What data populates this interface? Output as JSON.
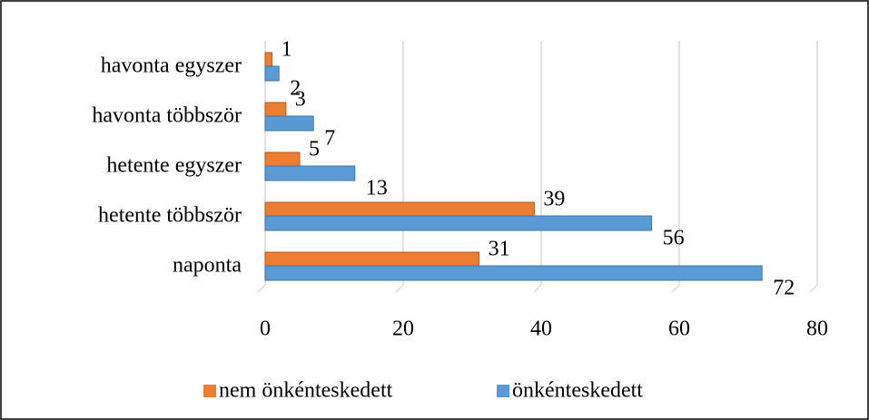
{
  "chart_data": {
    "type": "barh",
    "categories": [
      "naponta",
      "hetente többször",
      "hetente egyszer",
      "havonta többször",
      "havonta egyszer"
    ],
    "series": [
      {
        "name": "nem önkénteskedett",
        "color": "#ed7d31",
        "values": [
          31,
          39,
          5,
          3,
          1
        ]
      },
      {
        "name": "önkénteskedett",
        "color": "#5b9bd5",
        "values": [
          72,
          56,
          13,
          7,
          2
        ]
      }
    ],
    "xlim": [
      0,
      80
    ],
    "xticks": [
      0,
      20,
      40,
      60,
      80
    ],
    "grid": true,
    "legend": "bottom"
  }
}
